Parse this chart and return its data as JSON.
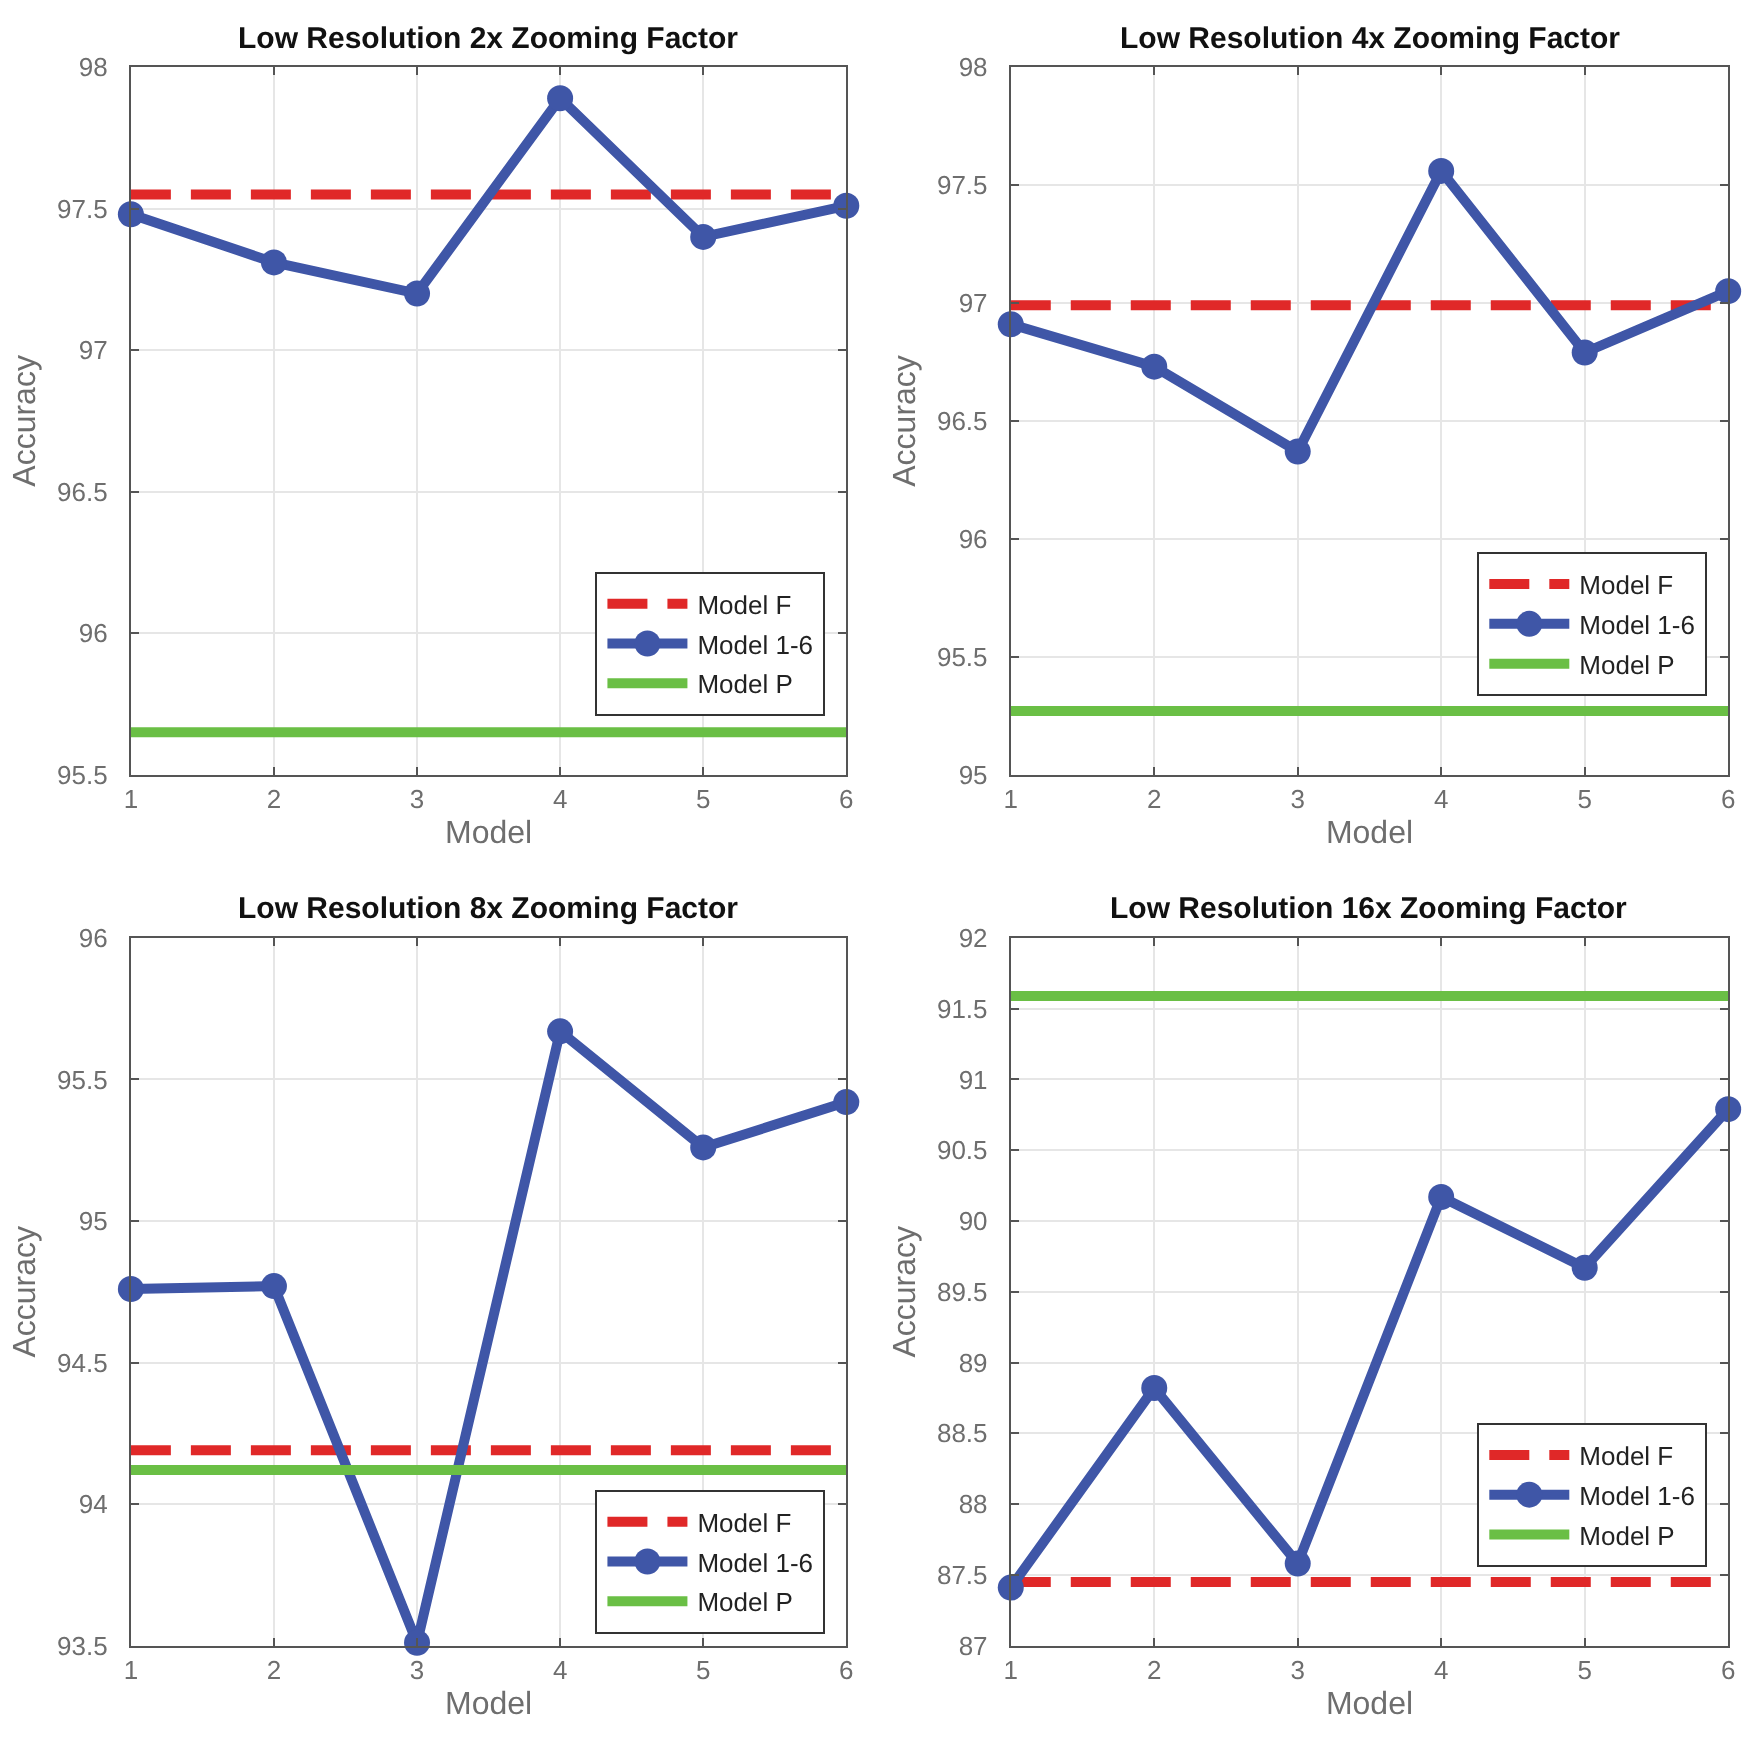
{
  "chart_data": [
    {
      "type": "line",
      "title": "Low Resolution 2x Zooming Factor",
      "xlabel": "Model",
      "ylabel": "Accuracy",
      "x": [
        1,
        2,
        3,
        4,
        5,
        6
      ],
      "xlim": [
        1,
        6
      ],
      "xticks": [
        1,
        2,
        3,
        4,
        5,
        6
      ],
      "ylim": [
        95.5,
        98
      ],
      "yticks": [
        95.5,
        96,
        96.5,
        97,
        97.5,
        98
      ],
      "grid": true,
      "legend": "bottom right",
      "series": [
        {
          "name": "Model F",
          "color": "#e02828",
          "values": [
            97.55,
            97.55,
            97.55,
            97.55,
            97.55,
            97.55
          ],
          "line_style": "dashed",
          "marker": "none"
        },
        {
          "name": "Model 1-6",
          "color": "#3f56a7",
          "values": [
            97.48,
            97.31,
            97.2,
            97.89,
            97.4,
            97.51
          ],
          "line_style": "solid",
          "marker": "circle"
        },
        {
          "name": "Model P",
          "color": "#6abf45",
          "values": [
            95.65,
            95.65,
            95.65,
            95.65,
            95.65,
            95.65
          ],
          "line_style": "solid",
          "marker": "none"
        }
      ]
    },
    {
      "type": "line",
      "title": "Low Resolution 4x Zooming Factor",
      "xlabel": "Model",
      "ylabel": "Accuracy",
      "x": [
        1,
        2,
        3,
        4,
        5,
        6
      ],
      "xlim": [
        1,
        6
      ],
      "xticks": [
        1,
        2,
        3,
        4,
        5,
        6
      ],
      "ylim": [
        95,
        98
      ],
      "yticks": [
        95,
        95.5,
        96,
        96.5,
        97,
        97.5,
        98
      ],
      "grid": true,
      "legend": "bottom right",
      "series": [
        {
          "name": "Model F",
          "color": "#e02828",
          "values": [
            96.99,
            96.99,
            96.99,
            96.99,
            96.99,
            96.99
          ],
          "line_style": "dashed",
          "marker": "none"
        },
        {
          "name": "Model 1-6",
          "color": "#3f56a7",
          "values": [
            96.91,
            96.73,
            96.37,
            97.56,
            96.79,
            97.05
          ],
          "line_style": "solid",
          "marker": "circle"
        },
        {
          "name": "Model P",
          "color": "#6abf45",
          "values": [
            95.27,
            95.27,
            95.27,
            95.27,
            95.27,
            95.27
          ],
          "line_style": "solid",
          "marker": "none"
        }
      ]
    },
    {
      "type": "line",
      "title": "Low Resolution 8x Zooming Factor",
      "xlabel": "Model",
      "ylabel": "Accuracy",
      "x": [
        1,
        2,
        3,
        4,
        5,
        6
      ],
      "xlim": [
        1,
        6
      ],
      "xticks": [
        1,
        2,
        3,
        4,
        5,
        6
      ],
      "ylim": [
        93.5,
        96
      ],
      "yticks": [
        93.5,
        94,
        94.5,
        95,
        95.5,
        96
      ],
      "grid": true,
      "legend": "bottom right",
      "series": [
        {
          "name": "Model F",
          "color": "#e02828",
          "values": [
            94.19,
            94.19,
            94.19,
            94.19,
            94.19,
            94.19
          ],
          "line_style": "dashed",
          "marker": "none"
        },
        {
          "name": "Model 1-6",
          "color": "#3f56a7",
          "values": [
            94.76,
            94.77,
            93.51,
            95.67,
            95.26,
            95.42
          ],
          "line_style": "solid",
          "marker": "circle"
        },
        {
          "name": "Model P",
          "color": "#6abf45",
          "values": [
            94.12,
            94.12,
            94.12,
            94.12,
            94.12,
            94.12
          ],
          "line_style": "solid",
          "marker": "none"
        }
      ]
    },
    {
      "type": "line",
      "title": "Low Resolution 16x Zooming Factor",
      "xlabel": "Model",
      "ylabel": "Accuracy",
      "x": [
        1,
        2,
        3,
        4,
        5,
        6
      ],
      "xlim": [
        1,
        6
      ],
      "xticks": [
        1,
        2,
        3,
        4,
        5,
        6
      ],
      "ylim": [
        87,
        92
      ],
      "yticks": [
        87,
        87.5,
        88,
        88.5,
        89,
        89.5,
        90,
        90.5,
        91,
        91.5,
        92
      ],
      "grid": true,
      "legend": "bottom right",
      "series": [
        {
          "name": "Model F",
          "color": "#e02828",
          "values": [
            87.45,
            87.45,
            87.45,
            87.45,
            87.45,
            87.45
          ],
          "line_style": "dashed",
          "marker": "none"
        },
        {
          "name": "Model 1-6",
          "color": "#3f56a7",
          "values": [
            87.41,
            88.82,
            87.58,
            90.17,
            89.67,
            90.79
          ],
          "line_style": "solid",
          "marker": "circle"
        },
        {
          "name": "Model P",
          "color": "#6abf45",
          "values": [
            91.59,
            91.59,
            91.59,
            91.59,
            91.59,
            91.59
          ],
          "line_style": "solid",
          "marker": "none"
        }
      ]
    }
  ]
}
